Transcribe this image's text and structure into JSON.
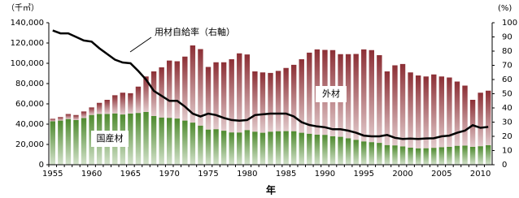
{
  "chart_data": {
    "type": "bar",
    "stacked": true,
    "y_label": "（千㎥）",
    "y2_label": "(%)",
    "x_label": "年",
    "categories": [
      "1955",
      null,
      null,
      null,
      null,
      "1960",
      null,
      null,
      null,
      null,
      "1965",
      null,
      null,
      null,
      null,
      "1970",
      null,
      null,
      null,
      null,
      "1975",
      null,
      null,
      null,
      null,
      "1980",
      null,
      null,
      null,
      null,
      "1985",
      null,
      null,
      null,
      null,
      "1990",
      null,
      null,
      null,
      null,
      "1995",
      null,
      null,
      null,
      null,
      "2000",
      null,
      null,
      null,
      null,
      "2005",
      null,
      null,
      null,
      null,
      "2010",
      null
    ],
    "series": [
      {
        "name": "国産材",
        "color": "#4e8a2e",
        "values": [
          42800,
          43500,
          45000,
          44000,
          46000,
          49000,
          50000,
          50000,
          50500,
          49500,
          50400,
          51000,
          52000,
          48000,
          46500,
          46200,
          45500,
          43500,
          41500,
          38500,
          34600,
          35000,
          33500,
          31800,
          31700,
          34100,
          32500,
          31500,
          32500,
          33000,
          33100,
          33000,
          31500,
          30500,
          29600,
          29400,
          28000,
          27500,
          26000,
          24500,
          22900,
          22200,
          21500,
          19300,
          19000,
          18000,
          16800,
          16100,
          16200,
          16600,
          17200,
          17600,
          18600,
          18800,
          17600,
          18200,
          19200
        ]
      },
      {
        "name": "外材",
        "color": "#8c2f35",
        "values": [
          2500,
          3500,
          5000,
          5000,
          6500,
          7500,
          11000,
          14000,
          18000,
          21500,
          20100,
          26000,
          35000,
          44000,
          49500,
          56500,
          56500,
          63100,
          76100,
          75500,
          61800,
          66000,
          67500,
          72200,
          78100,
          74600,
          59500,
          59500,
          58000,
          59500,
          62300,
          65500,
          72500,
          80000,
          84100,
          83800,
          85000,
          81500,
          83000,
          84700,
          90800,
          90800,
          86500,
          72700,
          79000,
          81300,
          74200,
          71900,
          70800,
          72400,
          69800,
          68400,
          63400,
          59200,
          46400,
          52800,
          53800
        ]
      },
      {
        "name": "用材自給率（右軸）",
        "type": "line",
        "axis": "y2",
        "color": "#000000",
        "values": [
          94.5,
          92.5,
          92.5,
          90,
          87.5,
          86.7,
          82,
          78,
          74,
          72,
          71.4,
          66,
          60,
          52,
          48.5,
          45,
          45,
          41,
          36,
          34,
          36,
          35,
          33,
          31.5,
          31,
          31.5,
          35,
          35.5,
          36,
          36,
          36,
          34,
          30,
          28,
          27,
          26.4,
          25,
          25,
          24,
          22.5,
          20.5,
          20,
          20,
          21,
          19,
          18.2,
          18.4,
          18.2,
          18.5,
          18.6,
          20,
          20.5,
          22.5,
          24,
          27.8,
          26,
          26.6
        ]
      }
    ],
    "ylim": [
      0,
      140000
    ],
    "yticks": [
      0,
      {
        "value": 20000,
        "label": "20,000"
      },
      {
        "value": 40000,
        "label": "40,000"
      },
      {
        "value": 60000,
        "label": "60,000"
      },
      {
        "value": 80000,
        "label": "80,000"
      },
      {
        "value": 100000,
        "label": "100,000"
      },
      {
        "value": 120000,
        "label": "120,000"
      },
      {
        "value": 140000,
        "label": "140,000"
      }
    ],
    "y2lim": [
      0,
      100
    ],
    "y2ticks": [
      0,
      10,
      20,
      30,
      40,
      50,
      60,
      70,
      80,
      90,
      100
    ]
  }
}
